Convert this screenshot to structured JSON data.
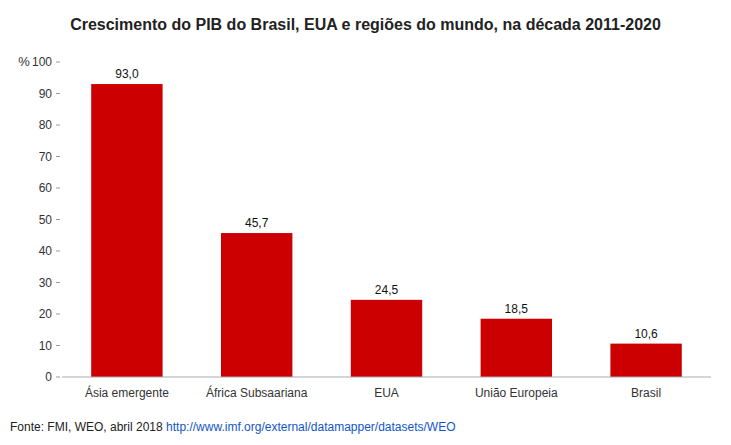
{
  "chart_data": {
    "type": "bar",
    "title": "Crescimento do PIB do Brasil, EUA e regiões do mundo, na década 2011-2020",
    "categories": [
      "Ásia emergente",
      "África Subsaariana",
      "EUA",
      "União Europeia",
      "Brasil"
    ],
    "values": [
      93.0,
      45.7,
      24.5,
      18.5,
      10.6
    ],
    "value_labels": [
      "93,0",
      "45,7",
      "24,5",
      "18,5",
      "10,6"
    ],
    "data_labels": true,
    "color": "#cc0000",
    "ylabel": "%",
    "ylim": [
      0,
      100
    ],
    "yticks": [
      0,
      10,
      20,
      30,
      40,
      50,
      60,
      70,
      80,
      90,
      100
    ],
    "grid": false,
    "footnote": "Fonte: FMI, WEO, abril 2018 ",
    "footnote_url": "http://www.imf.org/external/datamapper/datasets/WEO"
  }
}
